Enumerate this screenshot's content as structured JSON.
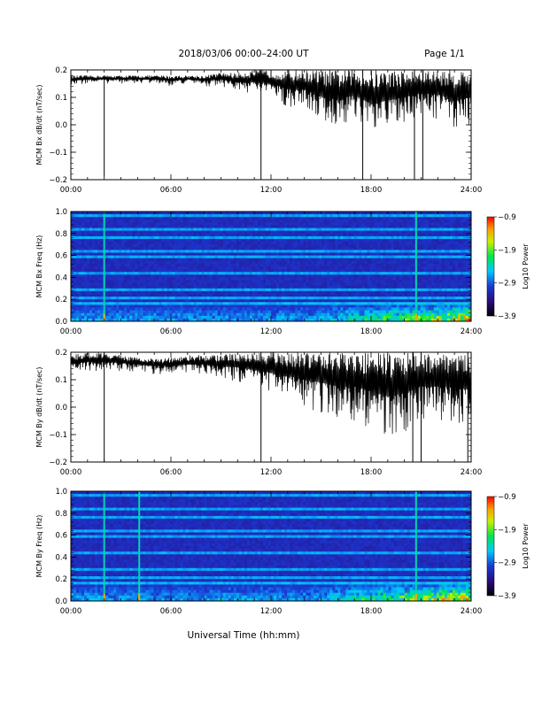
{
  "header": {
    "title": "2018/03/06  00:00–24:00 UT",
    "page": "Page 1/1"
  },
  "footer": {
    "xlabel": "Universal Time (hh:mm)"
  },
  "colors": {
    "trace": "#000000",
    "spectrogram_low": "#1a0b6e",
    "spectrogram_high": "#ff0000"
  },
  "chart_data": [
    {
      "type": "line",
      "ylabel": "MCM Bx dB/dt (nT/sec)",
      "ylim": [
        -0.2,
        0.2
      ],
      "yticks": [
        "0.2",
        "0.1",
        "0.0",
        "−0.1",
        "−0.2"
      ],
      "xlim": [
        0,
        24
      ],
      "xticks": [
        "00:00",
        "06:00",
        "12:00",
        "18:00",
        "24:00"
      ],
      "series": [
        {
          "x": [
            0,
            1,
            2,
            3,
            4,
            5,
            6,
            7,
            8,
            9,
            10,
            11,
            12,
            13,
            14,
            15,
            16,
            17,
            18,
            19,
            20,
            21,
            22,
            23,
            24
          ],
          "upper": [
            0.18,
            0.18,
            0.18,
            0.18,
            0.18,
            0.18,
            0.18,
            0.18,
            0.18,
            0.19,
            0.19,
            0.2,
            0.2,
            0.2,
            0.2,
            0.2,
            0.2,
            0.2,
            0.2,
            0.2,
            0.2,
            0.2,
            0.2,
            0.2,
            0.2
          ],
          "lower": [
            0.14,
            0.15,
            0.15,
            0.15,
            0.15,
            0.15,
            0.14,
            0.15,
            0.14,
            0.14,
            0.12,
            0.11,
            0.1,
            0.06,
            0.06,
            0.01,
            -0.02,
            0.02,
            -0.05,
            -0.02,
            0.0,
            0.03,
            0.02,
            -0.02,
            0.0
          ]
        }
      ],
      "spikes": [
        {
          "x": 2.0,
          "y": -0.19
        },
        {
          "x": 11.4,
          "y": -0.2
        },
        {
          "x": 17.5,
          "y": -0.2
        },
        {
          "x": 20.6,
          "y": -0.2
        },
        {
          "x": 21.1,
          "y": -0.2
        }
      ]
    },
    {
      "type": "heatmap",
      "ylabel": "MCM Bx Freq (Hz)",
      "ylim": [
        0,
        1.0
      ],
      "yticks": [
        "1.0",
        "0.8",
        "0.6",
        "0.4",
        "0.2",
        "0.0"
      ],
      "xlim": [
        0,
        24
      ],
      "xticks": [
        "00:00",
        "06:00",
        "12:00",
        "18:00",
        "24:00"
      ],
      "colorbar": {
        "label": "Log10 Power",
        "ticks": [
          "−0.9",
          "−1.9",
          "−2.9",
          "−3.9"
        ],
        "range": [
          -3.9,
          -0.9
        ]
      },
      "harmonic_freqs": [
        0.05,
        0.1,
        0.16,
        0.22,
        0.28,
        0.35,
        0.43,
        0.5,
        0.58,
        0.64,
        0.7,
        0.76,
        0.83,
        0.9,
        0.96
      ],
      "bright_columns": [
        2.0,
        20.7
      ],
      "activity_window": [
        14,
        24
      ]
    },
    {
      "type": "line",
      "ylabel": "MCM By dB/dt (nT/sec)",
      "ylim": [
        -0.2,
        0.2
      ],
      "yticks": [
        "0.2",
        "0.1",
        "0.0",
        "−0.1",
        "−0.2"
      ],
      "xlim": [
        0,
        24
      ],
      "xticks": [
        "00:00",
        "06:00",
        "12:00",
        "18:00",
        "24:00"
      ],
      "series": [
        {
          "x": [
            0,
            1,
            2,
            3,
            4,
            5,
            6,
            7,
            8,
            9,
            10,
            11,
            12,
            13,
            14,
            15,
            16,
            17,
            18,
            19,
            20,
            21,
            22,
            23,
            24
          ],
          "upper": [
            0.19,
            0.2,
            0.2,
            0.19,
            0.18,
            0.18,
            0.18,
            0.19,
            0.19,
            0.19,
            0.2,
            0.2,
            0.2,
            0.2,
            0.2,
            0.2,
            0.2,
            0.2,
            0.2,
            0.2,
            0.2,
            0.2,
            0.2,
            0.2,
            0.2
          ],
          "lower": [
            0.12,
            0.13,
            0.13,
            0.13,
            0.13,
            0.12,
            0.12,
            0.12,
            0.12,
            0.11,
            0.09,
            0.07,
            0.05,
            0.03,
            0.0,
            -0.02,
            -0.05,
            -0.05,
            -0.08,
            -0.12,
            -0.1,
            -0.05,
            -0.05,
            -0.05,
            -0.08
          ]
        }
      ],
      "spikes": [
        {
          "x": 2.0,
          "y": -0.2
        },
        {
          "x": 11.4,
          "y": -0.2
        },
        {
          "x": 20.5,
          "y": -0.2
        },
        {
          "x": 21.0,
          "y": -0.2
        },
        {
          "x": 23.8,
          "y": -0.2
        }
      ]
    },
    {
      "type": "heatmap",
      "ylabel": "MCM By Freq (Hz)",
      "ylim": [
        0,
        1.0
      ],
      "yticks": [
        "1.0",
        "0.8",
        "0.6",
        "0.4",
        "0.2",
        "0.0"
      ],
      "xlim": [
        0,
        24
      ],
      "xticks": [
        "00:00",
        "06:00",
        "12:00",
        "18:00",
        "24:00"
      ],
      "colorbar": {
        "label": "Log10 Power",
        "ticks": [
          "−0.9",
          "−1.9",
          "−2.9",
          "−3.9"
        ],
        "range": [
          -3.9,
          -0.9
        ]
      },
      "harmonic_freqs": [
        0.05,
        0.1,
        0.16,
        0.22,
        0.28,
        0.35,
        0.43,
        0.5,
        0.58,
        0.64,
        0.7,
        0.76,
        0.83,
        0.9,
        0.96
      ],
      "bright_columns": [
        2.0,
        4.1,
        20.7
      ],
      "activity_window": [
        14,
        24
      ]
    }
  ]
}
